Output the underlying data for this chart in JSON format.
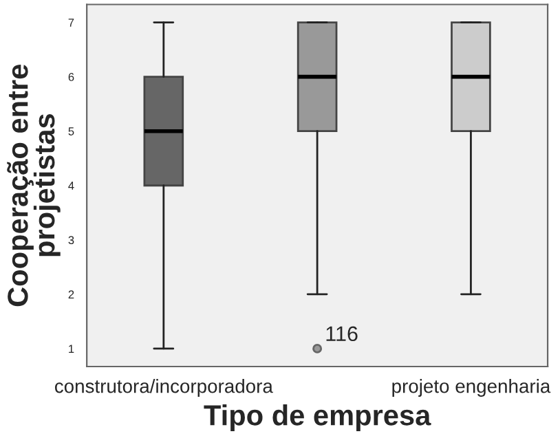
{
  "chart_data": {
    "type": "box",
    "xlabel": "Tipo de empresa",
    "ylabel": "Cooperação entre\nprojetistas",
    "categories": [
      "construtora/incorporadora",
      null,
      "projeto engenharia"
    ],
    "colors": [
      "#666666",
      "#999999",
      "#cccccc"
    ],
    "boxes": [
      {
        "low": 1,
        "q1": 4,
        "median": 5,
        "q3": 6,
        "high": 7
      },
      {
        "low": 2,
        "q1": 5,
        "median": 6,
        "q3": 7,
        "high": 7,
        "outliers": [
          1
        ]
      },
      {
        "low": 2,
        "q1": 5,
        "median": 6,
        "q3": 7,
        "high": 7
      }
    ],
    "ylim": [
      0.67,
      7.33
    ],
    "yticks": [
      1,
      2,
      3,
      4,
      5,
      6,
      7
    ],
    "annotations": [
      "116"
    ],
    "grid": false,
    "legend": false
  }
}
